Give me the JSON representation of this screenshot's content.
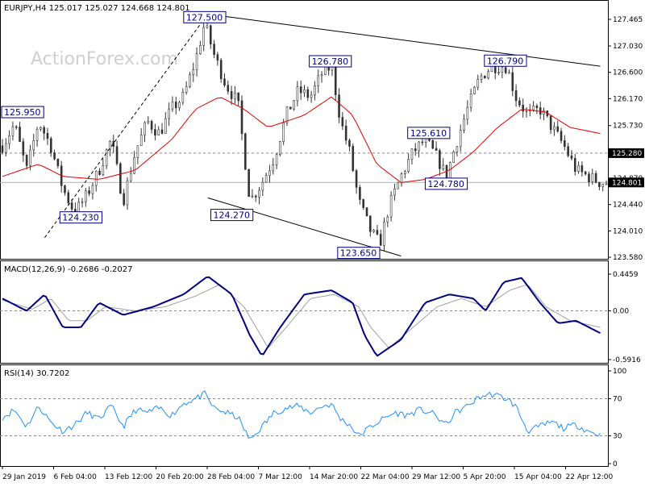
{
  "main": {
    "header": "EURJPY,H4  125.017 125.027 124.668 124.801",
    "watermark": "ActionForex.com",
    "y_ticks": [
      "127.465",
      "127.030",
      "126.600",
      "126.170",
      "125.730",
      "125.300",
      "124.870",
      "124.440",
      "124.010",
      "123.580"
    ],
    "current_price": "124.801",
    "level_price": "125.280",
    "annotations": [
      {
        "text": "127.500",
        "price": 127.5,
        "t": 0.335
      },
      {
        "text": "126.780",
        "price": 126.78,
        "t": 0.543
      },
      {
        "text": "126.790",
        "price": 126.79,
        "t": 0.833
      },
      {
        "text": "125.950",
        "price": 125.95,
        "t": 0.003
      },
      {
        "text": "125.610",
        "price": 125.61,
        "t": 0.706
      },
      {
        "text": "124.780",
        "price": 124.78,
        "t": 0.735
      },
      {
        "text": "124.270",
        "price": 124.27,
        "t": 0.38
      },
      {
        "text": "124.230",
        "price": 124.23,
        "t": 0.13
      },
      {
        "text": "123.650",
        "price": 123.65,
        "t": 0.59
      }
    ]
  },
  "macd": {
    "header": "MACD(12,26,9) -0.2686 -0.2027",
    "y_ticks": [
      "0.4459",
      "0.00",
      "-0.5916"
    ]
  },
  "rsi": {
    "header": "RSI(14) 30.7202",
    "y_ticks": [
      "100",
      "70",
      "30",
      "0"
    ]
  },
  "x_ticks": [
    "29 Jan 2019",
    "6 Feb 04:00",
    "13 Feb 12:00",
    "20 Feb 20:00",
    "28 Feb 04:00",
    "7 Mar 12:00",
    "14 Mar 20:00",
    "22 Mar 04:00",
    "29 Mar 12:00",
    "5 Apr 20:00",
    "15 Apr 04:00",
    "22 Apr 12:00"
  ],
  "colors": {
    "candles": "#333333",
    "ma": "#e00000",
    "macd": "#000080",
    "signal": "#a0a0a0",
    "rsi": "#1e90ff",
    "grid": "#888888"
  },
  "chart_data": [
    {
      "type": "candlestick",
      "title": "EURJPY,H4",
      "ohlc_last": {
        "open": 125.017,
        "high": 125.027,
        "low": 124.668,
        "close": 124.801
      },
      "ylim": [
        123.58,
        127.465
      ],
      "close_path": [
        [
          0,
          125.4
        ],
        [
          0.02,
          125.75
        ],
        [
          0.04,
          125.0
        ],
        [
          0.06,
          125.8
        ],
        [
          0.08,
          125.4
        ],
        [
          0.1,
          124.7
        ],
        [
          0.12,
          124.3
        ],
        [
          0.14,
          124.6
        ],
        [
          0.16,
          125.0
        ],
        [
          0.18,
          125.5
        ],
        [
          0.2,
          124.5
        ],
        [
          0.22,
          125.3
        ],
        [
          0.24,
          125.8
        ],
        [
          0.26,
          125.6
        ],
        [
          0.28,
          126.0
        ],
        [
          0.3,
          126.2
        ],
        [
          0.32,
          126.8
        ],
        [
          0.335,
          127.4
        ],
        [
          0.35,
          126.9
        ],
        [
          0.37,
          126.4
        ],
        [
          0.39,
          126.1
        ],
        [
          0.4,
          125.3
        ],
        [
          0.41,
          124.5
        ],
        [
          0.43,
          124.8
        ],
        [
          0.45,
          125.2
        ],
        [
          0.47,
          125.9
        ],
        [
          0.49,
          126.3
        ],
        [
          0.51,
          126.2
        ],
        [
          0.53,
          126.6
        ],
        [
          0.545,
          126.7
        ],
        [
          0.56,
          125.8
        ],
        [
          0.575,
          125.3
        ],
        [
          0.59,
          124.5
        ],
        [
          0.61,
          124.0
        ],
        [
          0.625,
          123.8
        ],
        [
          0.64,
          124.4
        ],
        [
          0.66,
          124.9
        ],
        [
          0.68,
          125.3
        ],
        [
          0.7,
          125.5
        ],
        [
          0.72,
          125.2
        ],
        [
          0.735,
          124.9
        ],
        [
          0.75,
          125.4
        ],
        [
          0.77,
          126.0
        ],
        [
          0.79,
          126.5
        ],
        [
          0.81,
          126.7
        ],
        [
          0.835,
          126.7
        ],
        [
          0.85,
          126.2
        ],
        [
          0.87,
          125.9
        ],
        [
          0.89,
          126.0
        ],
        [
          0.91,
          125.7
        ],
        [
          0.93,
          125.4
        ],
        [
          0.95,
          125.0
        ],
        [
          0.97,
          124.9
        ],
        [
          0.99,
          124.8
        ]
      ],
      "ma_path": [
        [
          0,
          124.9
        ],
        [
          0.06,
          125.1
        ],
        [
          0.1,
          124.9
        ],
        [
          0.16,
          124.85
        ],
        [
          0.22,
          125.0
        ],
        [
          0.28,
          125.5
        ],
        [
          0.32,
          126.0
        ],
        [
          0.36,
          126.2
        ],
        [
          0.4,
          126.0
        ],
        [
          0.44,
          125.7
        ],
        [
          0.5,
          125.9
        ],
        [
          0.545,
          126.2
        ],
        [
          0.58,
          125.9
        ],
        [
          0.62,
          125.1
        ],
        [
          0.66,
          124.8
        ],
        [
          0.7,
          124.85
        ],
        [
          0.74,
          125.0
        ],
        [
          0.78,
          125.3
        ],
        [
          0.82,
          125.7
        ],
        [
          0.86,
          126.0
        ],
        [
          0.9,
          125.95
        ],
        [
          0.94,
          125.7
        ],
        [
          0.99,
          125.6
        ]
      ],
      "trendlines": [
        {
          "from": [
            0.07,
            123.9
          ],
          "to": [
            0.34,
            127.55
          ]
        },
        {
          "from": [
            0.34,
            127.55
          ],
          "to": [
            0.99,
            126.7
          ]
        },
        {
          "from": [
            0.34,
            124.55
          ],
          "to": [
            0.66,
            123.6
          ]
        }
      ],
      "hline": 125.28
    },
    {
      "type": "line",
      "title": "MACD(12,26,9)",
      "ylim": [
        -0.5916,
        0.4459
      ],
      "series": [
        {
          "name": "MACD",
          "values_path": [
            [
              0,
              0.15
            ],
            [
              0.04,
              0.0
            ],
            [
              0.07,
              0.2
            ],
            [
              0.1,
              -0.2
            ],
            [
              0.13,
              -0.2
            ],
            [
              0.16,
              0.1
            ],
            [
              0.2,
              -0.05
            ],
            [
              0.25,
              0.05
            ],
            [
              0.3,
              0.2
            ],
            [
              0.34,
              0.42
            ],
            [
              0.38,
              0.2
            ],
            [
              0.41,
              -0.3
            ],
            [
              0.43,
              -0.55
            ],
            [
              0.46,
              -0.2
            ],
            [
              0.5,
              0.2
            ],
            [
              0.545,
              0.25
            ],
            [
              0.58,
              0.1
            ],
            [
              0.6,
              -0.3
            ],
            [
              0.62,
              -0.55
            ],
            [
              0.66,
              -0.35
            ],
            [
              0.7,
              0.1
            ],
            [
              0.74,
              0.2
            ],
            [
              0.78,
              0.15
            ],
            [
              0.8,
              0.0
            ],
            [
              0.83,
              0.35
            ],
            [
              0.86,
              0.4
            ],
            [
              0.89,
              0.1
            ],
            [
              0.92,
              -0.15
            ],
            [
              0.95,
              -0.12
            ],
            [
              0.99,
              -0.27
            ]
          ]
        },
        {
          "name": "Signal",
          "values_path": [
            [
              0,
              0.13
            ],
            [
              0.05,
              0.02
            ],
            [
              0.08,
              0.15
            ],
            [
              0.11,
              -0.12
            ],
            [
              0.14,
              -0.12
            ],
            [
              0.17,
              0.05
            ],
            [
              0.22,
              0.0
            ],
            [
              0.27,
              0.05
            ],
            [
              0.32,
              0.18
            ],
            [
              0.36,
              0.32
            ],
            [
              0.4,
              0.05
            ],
            [
              0.44,
              -0.45
            ],
            [
              0.47,
              -0.2
            ],
            [
              0.51,
              0.15
            ],
            [
              0.55,
              0.2
            ],
            [
              0.59,
              0.05
            ],
            [
              0.61,
              -0.2
            ],
            [
              0.64,
              -0.45
            ],
            [
              0.68,
              -0.2
            ],
            [
              0.72,
              0.05
            ],
            [
              0.76,
              0.15
            ],
            [
              0.8,
              0.05
            ],
            [
              0.84,
              0.25
            ],
            [
              0.87,
              0.32
            ],
            [
              0.9,
              0.05
            ],
            [
              0.94,
              -0.12
            ],
            [
              0.99,
              -0.2
            ]
          ]
        }
      ]
    },
    {
      "type": "line",
      "title": "RSI(14)",
      "ylim": [
        0,
        100
      ],
      "levels": [
        70,
        30
      ],
      "series": [
        {
          "name": "RSI",
          "values_path": [
            [
              0,
              50
            ],
            [
              0.02,
              58
            ],
            [
              0.04,
              40
            ],
            [
              0.06,
              62
            ],
            [
              0.08,
              45
            ],
            [
              0.1,
              35
            ],
            [
              0.12,
              42
            ],
            [
              0.14,
              55
            ],
            [
              0.16,
              48
            ],
            [
              0.18,
              62
            ],
            [
              0.2,
              40
            ],
            [
              0.22,
              58
            ],
            [
              0.24,
              55
            ],
            [
              0.26,
              60
            ],
            [
              0.28,
              52
            ],
            [
              0.3,
              65
            ],
            [
              0.32,
              70
            ],
            [
              0.335,
              75
            ],
            [
              0.35,
              60
            ],
            [
              0.37,
              55
            ],
            [
              0.39,
              50
            ],
            [
              0.41,
              25
            ],
            [
              0.43,
              40
            ],
            [
              0.45,
              55
            ],
            [
              0.47,
              60
            ],
            [
              0.49,
              62
            ],
            [
              0.51,
              55
            ],
            [
              0.53,
              62
            ],
            [
              0.545,
              64
            ],
            [
              0.56,
              48
            ],
            [
              0.575,
              42
            ],
            [
              0.59,
              30
            ],
            [
              0.61,
              40
            ],
            [
              0.63,
              48
            ],
            [
              0.65,
              55
            ],
            [
              0.67,
              52
            ],
            [
              0.69,
              58
            ],
            [
              0.71,
              55
            ],
            [
              0.735,
              42
            ],
            [
              0.75,
              55
            ],
            [
              0.77,
              62
            ],
            [
              0.79,
              72
            ],
            [
              0.81,
              75
            ],
            [
              0.835,
              70
            ],
            [
              0.85,
              62
            ],
            [
              0.87,
              35
            ],
            [
              0.89,
              40
            ],
            [
              0.91,
              45
            ],
            [
              0.93,
              38
            ],
            [
              0.95,
              42
            ],
            [
              0.97,
              35
            ],
            [
              0.99,
              31
            ]
          ]
        }
      ]
    }
  ]
}
